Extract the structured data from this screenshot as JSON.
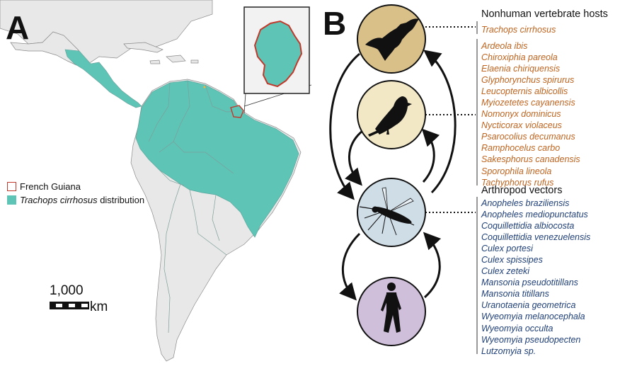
{
  "panels": {
    "a_label": "A",
    "b_label": "B"
  },
  "map": {
    "legend": {
      "inset_label": "French Guiana",
      "species_name": "Trachops cirrhosus",
      "distribution_suffix": " distribution"
    },
    "scale": {
      "value": "1,000",
      "unit": "km"
    },
    "colors": {
      "distribution": "#5ec4b6",
      "land": "#e8e8e8",
      "border": "#8a8a8a",
      "inset_outline": "#c0392b"
    }
  },
  "cycle": {
    "icons": [
      "bat-icon",
      "bird-icon",
      "mosquito-icon",
      "human-icon"
    ],
    "colors": {
      "bat": "#d9c089",
      "bird": "#f2e8c6",
      "mosquito": "#cfdde6",
      "human": "#cfbfdb"
    }
  },
  "hosts": {
    "heading": "Nonhuman vertebrate hosts",
    "bat_species": [
      "Trachops cirrhosus"
    ],
    "bird_species": [
      "Ardeola ibis",
      "Chiroxiphia pareola",
      "Elaenia chiriquensis",
      "Glyphorynchus spirurus",
      "Leucopternis albicollis",
      "Myiozetetes cayanensis",
      "Nomonyx dominicus",
      "Nycticorax violaceus",
      "Psarocolius decumanus",
      "Ramphocelus carbo",
      "Sakesphorus canadensis",
      "Sporophila lineola",
      "Tachyphorus rufus"
    ],
    "color": "#c0641f"
  },
  "vectors": {
    "heading": "Arthropod vectors",
    "species": [
      "Anopheles braziliensis",
      "Anopheles mediopunctatus",
      "Coquillettidia albiocosta",
      "Coquillettidia venezuelensis",
      "Culex portesi",
      "Culex spissipes",
      "Culex zeteki",
      "Mansonia pseudotitillans",
      "Mansonia titillans",
      "Uranotaenia geometrica",
      "Wyeomyia melanocephala",
      "Wyeomyia occulta",
      "Wyeomyia pseudopecten",
      "Lutzomyia sp."
    ],
    "color": "#1f3f78"
  }
}
